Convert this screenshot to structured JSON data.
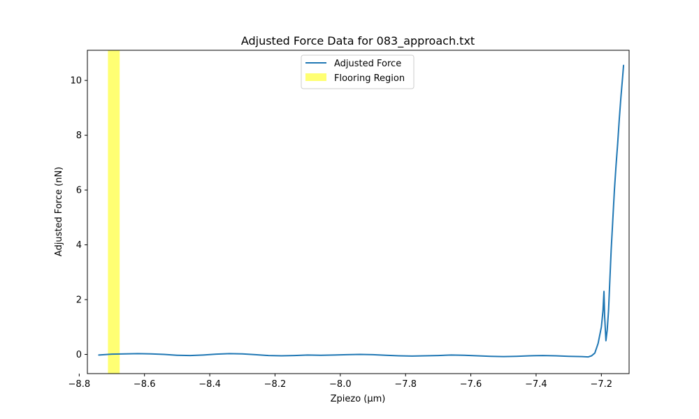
{
  "chart_data": {
    "type": "line",
    "title": "Adjusted Force Data for 083_approach.txt",
    "xlabel": "Zpiezo  (μm)",
    "ylabel": "Adjusted Force (nN)",
    "xlim": [
      -8.775,
      -7.115
    ],
    "ylim": [
      -0.7,
      11.1
    ],
    "grid": false,
    "legend_position": "upper center",
    "x_ticks": [
      -8.8,
      -8.6,
      -8.4,
      -8.2,
      -8.0,
      -7.8,
      -7.6,
      -7.4,
      -7.2
    ],
    "x_tick_labels": [
      "−8.8",
      "−8.6",
      "−8.4",
      "−8.2",
      "−8.0",
      "−7.8",
      "−7.6",
      "−7.4",
      "−7.2"
    ],
    "y_ticks": [
      0,
      2,
      4,
      6,
      8,
      10
    ],
    "y_tick_labels": [
      "0",
      "2",
      "4",
      "6",
      "8",
      "10"
    ],
    "series": [
      {
        "name": "Adjusted Force",
        "color": "#1f77b4",
        "x": [
          -8.74,
          -8.7,
          -8.66,
          -8.62,
          -8.58,
          -8.54,
          -8.5,
          -8.46,
          -8.42,
          -8.38,
          -8.34,
          -8.3,
          -8.26,
          -8.22,
          -8.18,
          -8.14,
          -8.1,
          -8.06,
          -8.02,
          -7.98,
          -7.94,
          -7.9,
          -7.86,
          -7.82,
          -7.78,
          -7.74,
          -7.7,
          -7.66,
          -7.62,
          -7.58,
          -7.54,
          -7.5,
          -7.46,
          -7.42,
          -7.38,
          -7.34,
          -7.3,
          -7.26,
          -7.24,
          -7.23,
          -7.22,
          -7.21,
          -7.2,
          -7.195,
          -7.192,
          -7.19,
          -7.186,
          -7.182,
          -7.178,
          -7.174,
          -7.17,
          -7.165,
          -7.16,
          -7.155,
          -7.15,
          -7.145,
          -7.14,
          -7.135,
          -7.132
        ],
        "y": [
          -0.02,
          0.01,
          0.02,
          0.03,
          0.02,
          0.0,
          -0.03,
          -0.04,
          -0.02,
          0.01,
          0.03,
          0.02,
          -0.01,
          -0.04,
          -0.05,
          -0.04,
          -0.02,
          -0.03,
          -0.02,
          -0.01,
          0.0,
          -0.01,
          -0.03,
          -0.05,
          -0.06,
          -0.05,
          -0.04,
          -0.02,
          -0.03,
          -0.05,
          -0.07,
          -0.08,
          -0.07,
          -0.05,
          -0.04,
          -0.05,
          -0.07,
          -0.08,
          -0.09,
          -0.05,
          0.05,
          0.4,
          1.0,
          1.6,
          2.3,
          1.4,
          0.5,
          0.9,
          1.6,
          2.7,
          3.8,
          4.9,
          6.0,
          6.9,
          7.7,
          8.6,
          9.4,
          10.1,
          10.55
        ]
      }
    ],
    "shaded_regions": [
      {
        "name": "Flooring Region",
        "x_range": [
          -8.712,
          -8.676
        ],
        "color": "#ffff00",
        "opacity": 0.55
      }
    ]
  }
}
